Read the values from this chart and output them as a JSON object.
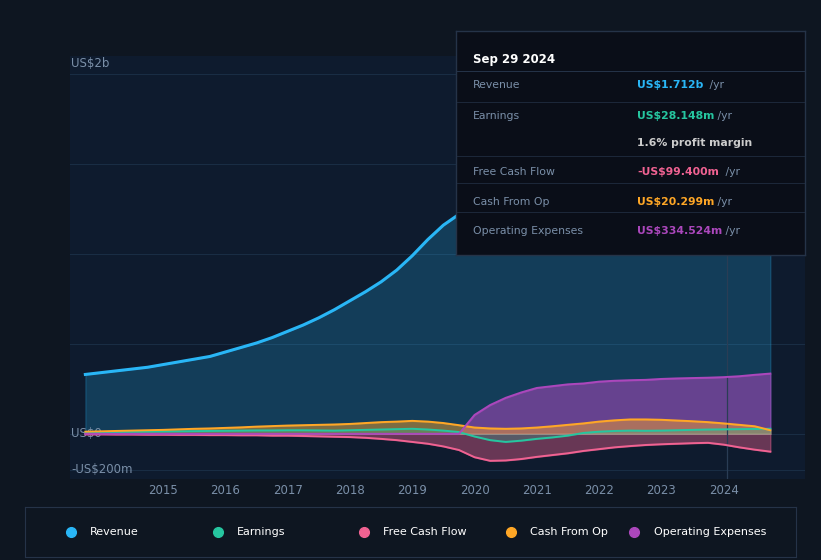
{
  "bg_color": "#0e1621",
  "plot_bg_color": "#0e1b2e",
  "grid_color": "#1a2e45",
  "text_color": "#7a8fa8",
  "y_label_top": "US$2b",
  "y_label_zero": "US$0",
  "y_label_neg": "-US$200m",
  "x_ticks": [
    2015,
    2016,
    2017,
    2018,
    2019,
    2020,
    2021,
    2022,
    2023,
    2024
  ],
  "years": [
    2013.75,
    2014.0,
    2014.25,
    2014.5,
    2014.75,
    2015.0,
    2015.25,
    2015.5,
    2015.75,
    2016.0,
    2016.25,
    2016.5,
    2016.75,
    2017.0,
    2017.25,
    2017.5,
    2017.75,
    2018.0,
    2018.25,
    2018.5,
    2018.75,
    2019.0,
    2019.25,
    2019.5,
    2019.75,
    2020.0,
    2020.25,
    2020.5,
    2020.75,
    2021.0,
    2021.25,
    2021.5,
    2021.75,
    2022.0,
    2022.25,
    2022.5,
    2022.75,
    2023.0,
    2023.25,
    2023.5,
    2023.75,
    2024.0,
    2024.25,
    2024.5,
    2024.75
  ],
  "revenue": [
    330,
    340,
    350,
    360,
    370,
    385,
    400,
    415,
    430,
    455,
    480,
    505,
    535,
    570,
    605,
    645,
    690,
    740,
    790,
    845,
    910,
    990,
    1080,
    1160,
    1220,
    1260,
    1310,
    1370,
    1440,
    1530,
    1610,
    1660,
    1700,
    1730,
    1750,
    1760,
    1770,
    1780,
    1790,
    1800,
    1820,
    1870,
    1920,
    1940,
    1712
  ],
  "earnings": [
    8,
    9,
    10,
    11,
    12,
    13,
    14,
    15,
    16,
    17,
    18,
    19,
    19,
    20,
    20,
    19,
    18,
    20,
    22,
    24,
    26,
    28,
    24,
    18,
    10,
    -15,
    -35,
    -45,
    -38,
    -28,
    -20,
    -10,
    5,
    12,
    16,
    18,
    17,
    18,
    20,
    22,
    24,
    25,
    26,
    27,
    28
  ],
  "free_cash_flow": [
    -3,
    -3,
    -4,
    -4,
    -5,
    -5,
    -6,
    -6,
    -7,
    -7,
    -8,
    -8,
    -10,
    -10,
    -12,
    -14,
    -16,
    -18,
    -22,
    -28,
    -35,
    -45,
    -55,
    -70,
    -90,
    -130,
    -150,
    -148,
    -140,
    -128,
    -118,
    -108,
    -95,
    -85,
    -75,
    -68,
    -62,
    -58,
    -55,
    -52,
    -50,
    -60,
    -75,
    -88,
    -99
  ],
  "cash_from_op": [
    12,
    14,
    16,
    18,
    20,
    22,
    25,
    28,
    30,
    33,
    36,
    40,
    43,
    46,
    48,
    50,
    52,
    55,
    60,
    65,
    68,
    72,
    68,
    60,
    48,
    35,
    30,
    28,
    30,
    35,
    42,
    50,
    58,
    68,
    75,
    80,
    80,
    78,
    74,
    70,
    65,
    58,
    50,
    42,
    20
  ],
  "operating_expenses": [
    0,
    0,
    0,
    0,
    0,
    0,
    0,
    0,
    0,
    0,
    0,
    0,
    0,
    0,
    0,
    0,
    0,
    0,
    0,
    0,
    0,
    0,
    0,
    0,
    0,
    105,
    160,
    200,
    230,
    255,
    265,
    275,
    280,
    290,
    295,
    298,
    300,
    305,
    308,
    310,
    312,
    315,
    320,
    328,
    335
  ],
  "revenue_color": "#29b6f6",
  "earnings_color": "#26c6a0",
  "fcf_color": "#f06292",
  "cashop_color": "#ffa726",
  "opex_color": "#ab47bc",
  "ylim": [
    -250,
    2100
  ],
  "xlim_start": 2013.5,
  "xlim_end": 2025.3,
  "yticks": [
    2000,
    1500,
    1000,
    500,
    0,
    -200
  ],
  "tooltip_date": "Sep 29 2024",
  "tooltip_rows": [
    [
      "Revenue",
      "US$1.712b /yr",
      "#29b6f6"
    ],
    [
      "Earnings",
      "US$28.148m /yr",
      "#26c6a0"
    ],
    [
      "",
      "1.6% profit margin",
      "#cccccc"
    ],
    [
      "Free Cash Flow",
      "-US$99.400m /yr",
      "#f06292"
    ],
    [
      "Cash From Op",
      "US$20.299m /yr",
      "#ffa726"
    ],
    [
      "Operating Expenses",
      "US$334.524m /yr",
      "#ab47bc"
    ]
  ],
  "legend_items": [
    "Revenue",
    "Earnings",
    "Free Cash Flow",
    "Cash From Op",
    "Operating Expenses"
  ],
  "legend_colors": [
    "#29b6f6",
    "#26c6a0",
    "#f06292",
    "#ffa726",
    "#ab47bc"
  ]
}
